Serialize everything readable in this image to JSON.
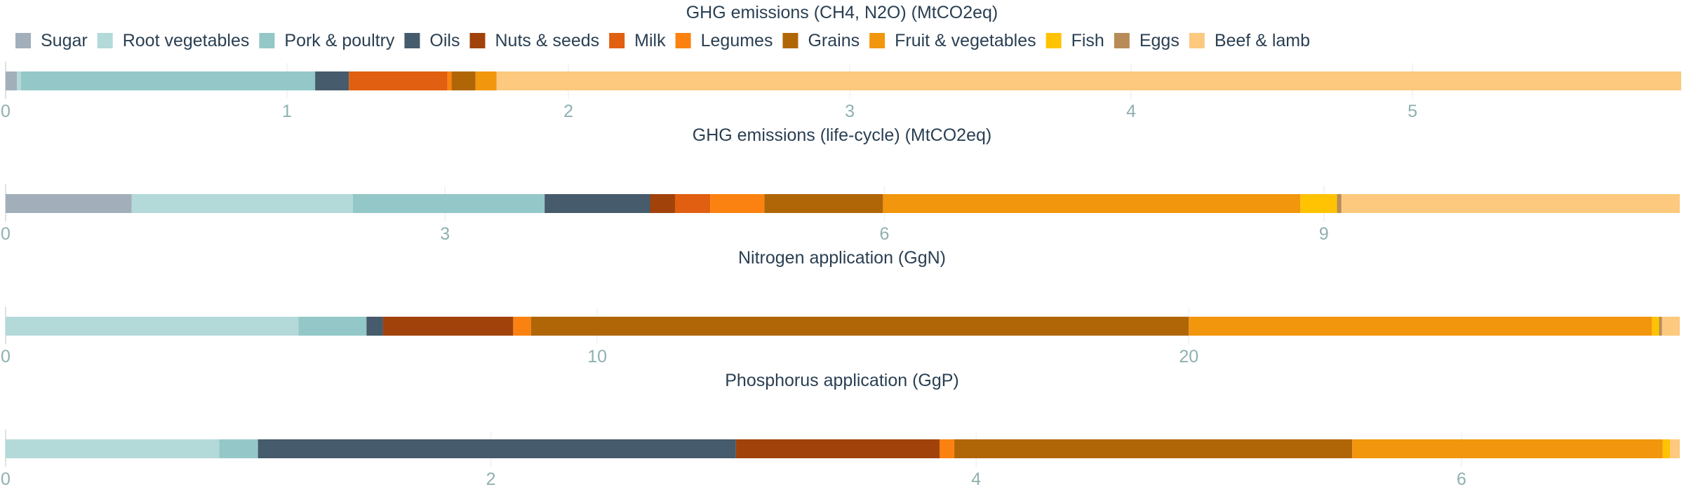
{
  "colors": {
    "title": "#2a3f52",
    "legend_text": "#2a3f52",
    "tick": "#8fb0b0",
    "grid": "#eef2f2",
    "axis": "#cfd8d8"
  },
  "legend": {
    "placement": "top",
    "items": [
      {
        "name": "Sugar",
        "color": "#a2afba"
      },
      {
        "name": "Root vegetables",
        "color": "#b4d9d9"
      },
      {
        "name": "Pork & poultry",
        "color": "#94c8c8"
      },
      {
        "name": "Oils",
        "color": "#465b6c"
      },
      {
        "name": "Nuts & seeds",
        "color": "#a1420b"
      },
      {
        "name": "Milk",
        "color": "#e05f11"
      },
      {
        "name": "Legumes",
        "color": "#fb8210"
      },
      {
        "name": "Grains",
        "color": "#b06607"
      },
      {
        "name": "Fruit & vegetables",
        "color": "#f2960e"
      },
      {
        "name": "Fish",
        "color": "#ffc303"
      },
      {
        "name": "Eggs",
        "color": "#b88c58"
      },
      {
        "name": "Beef & lamb",
        "color": "#fcc97e"
      }
    ]
  },
  "chart_data": [
    {
      "type": "bar",
      "orientation": "horizontal-stacked",
      "title": "GHG emissions (CH4, N2O) (MtCO2eq)",
      "xlim": [
        0,
        5.95
      ],
      "ticks": [
        0,
        1,
        2,
        3,
        4,
        5
      ],
      "series": [
        {
          "name": "Sugar",
          "value": 0.04
        },
        {
          "name": "Root vegetables",
          "value": 0.015
        },
        {
          "name": "Pork & poultry",
          "value": 1.045
        },
        {
          "name": "Oils",
          "value": 0.12
        },
        {
          "name": "Nuts & seeds",
          "value": 0.0
        },
        {
          "name": "Milk",
          "value": 0.35
        },
        {
          "name": "Legumes",
          "value": 0.015
        },
        {
          "name": "Grains",
          "value": 0.085
        },
        {
          "name": "Fruit & vegetables",
          "value": 0.075
        },
        {
          "name": "Fish",
          "value": 0.0
        },
        {
          "name": "Eggs",
          "value": 0.0
        },
        {
          "name": "Beef & lamb",
          "value": 4.21
        }
      ]
    },
    {
      "type": "bar",
      "orientation": "horizontal-stacked",
      "title": "GHG emissions (life-cycle) (MtCO2eq)",
      "xlim": [
        0,
        11.43
      ],
      "ticks": [
        0,
        3,
        6,
        9
      ],
      "series": [
        {
          "name": "Sugar",
          "value": 0.86
        },
        {
          "name": "Root vegetables",
          "value": 1.51
        },
        {
          "name": "Pork & poultry",
          "value": 1.31
        },
        {
          "name": "Oils",
          "value": 0.72
        },
        {
          "name": "Nuts & seeds",
          "value": 0.17
        },
        {
          "name": "Milk",
          "value": 0.24
        },
        {
          "name": "Legumes",
          "value": 0.37
        },
        {
          "name": "Grains",
          "value": 0.81
        },
        {
          "name": "Fruit & vegetables",
          "value": 2.85
        },
        {
          "name": "Fish",
          "value": 0.25
        },
        {
          "name": "Eggs",
          "value": 0.03
        },
        {
          "name": "Beef & lamb",
          "value": 2.31
        }
      ]
    },
    {
      "type": "bar",
      "orientation": "horizontal-stacked",
      "title": "Nitrogen application (GgN)",
      "xlim": [
        0,
        28.3
      ],
      "ticks": [
        0,
        10,
        20
      ],
      "series": [
        {
          "name": "Sugar",
          "value": 0.0
        },
        {
          "name": "Root vegetables",
          "value": 4.95
        },
        {
          "name": "Pork & poultry",
          "value": 1.15
        },
        {
          "name": "Oils",
          "value": 0.28
        },
        {
          "name": "Nuts & seeds",
          "value": 2.2
        },
        {
          "name": "Milk",
          "value": 0.0
        },
        {
          "name": "Legumes",
          "value": 0.3
        },
        {
          "name": "Grains",
          "value": 11.12
        },
        {
          "name": "Fruit & vegetables",
          "value": 7.83
        },
        {
          "name": "Fish",
          "value": 0.12
        },
        {
          "name": "Eggs",
          "value": 0.05
        },
        {
          "name": "Beef & lamb",
          "value": 0.3
        }
      ]
    },
    {
      "type": "bar",
      "orientation": "horizontal-stacked",
      "title": "Phosphorus application (GgP)",
      "xlim": [
        0,
        6.9
      ],
      "ticks": [
        0,
        2,
        4,
        6
      ],
      "series": [
        {
          "name": "Sugar",
          "value": 0.0
        },
        {
          "name": "Root vegetables",
          "value": 0.88
        },
        {
          "name": "Pork & poultry",
          "value": 0.16
        },
        {
          "name": "Oils",
          "value": 1.97
        },
        {
          "name": "Nuts & seeds",
          "value": 0.84
        },
        {
          "name": "Milk",
          "value": 0.0
        },
        {
          "name": "Legumes",
          "value": 0.06
        },
        {
          "name": "Grains",
          "value": 1.64
        },
        {
          "name": "Fruit & vegetables",
          "value": 1.28
        },
        {
          "name": "Fish",
          "value": 0.03
        },
        {
          "name": "Eggs",
          "value": 0.0
        },
        {
          "name": "Beef & lamb",
          "value": 0.04
        }
      ]
    }
  ]
}
